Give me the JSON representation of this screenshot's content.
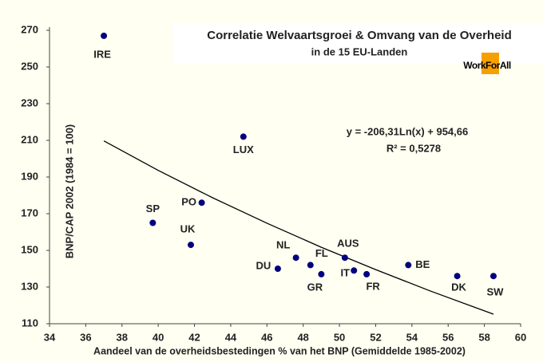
{
  "chart_data": {
    "type": "scatter",
    "title": "Correlatie Welvaartsgroei &  Omvang van de Overheid",
    "subtitle": "in de 15 EU-Landen",
    "logo": "WorkForAll",
    "x_label": "Aandeel van de overheidsbestedingen  % van het BNP (Gemiddelde 1985-2002)",
    "y_label": "BNP/CAP 2002  (1984 = 100)",
    "equation": "y = -206,31Ln(x) + 954,66",
    "r_squared": "R² = 0,5278",
    "labels": [
      "IRE",
      "LUX",
      "PO",
      "SP",
      "UK",
      "NL",
      "DU",
      "FL",
      "GR",
      "AUS",
      "IT",
      "FR",
      "BE",
      "DK",
      "SW"
    ],
    "x": [
      37.0,
      44.7,
      42.4,
      39.7,
      41.8,
      47.6,
      46.6,
      48.4,
      49.0,
      50.3,
      50.8,
      51.5,
      53.8,
      56.5,
      58.5
    ],
    "values": [
      267,
      212,
      176,
      165,
      153,
      146,
      140,
      142,
      137,
      146,
      139,
      137,
      142,
      136,
      136
    ],
    "color": "#000080",
    "trendline": {
      "x": [
        37,
        40,
        43,
        46,
        49,
        52,
        55,
        58.5
      ],
      "values": [
        209.7,
        193.6,
        178.7,
        164.8,
        151.7,
        139.5,
        127.9,
        115.2
      ]
    },
    "xlim": [
      34,
      60
    ],
    "xticks": [
      34,
      36,
      38,
      40,
      42,
      44,
      46,
      48,
      50,
      52,
      54,
      56,
      58,
      60
    ],
    "ylim": [
      110,
      270
    ],
    "yticks": [
      110,
      130,
      150,
      170,
      190,
      210,
      230,
      250,
      270
    ]
  }
}
